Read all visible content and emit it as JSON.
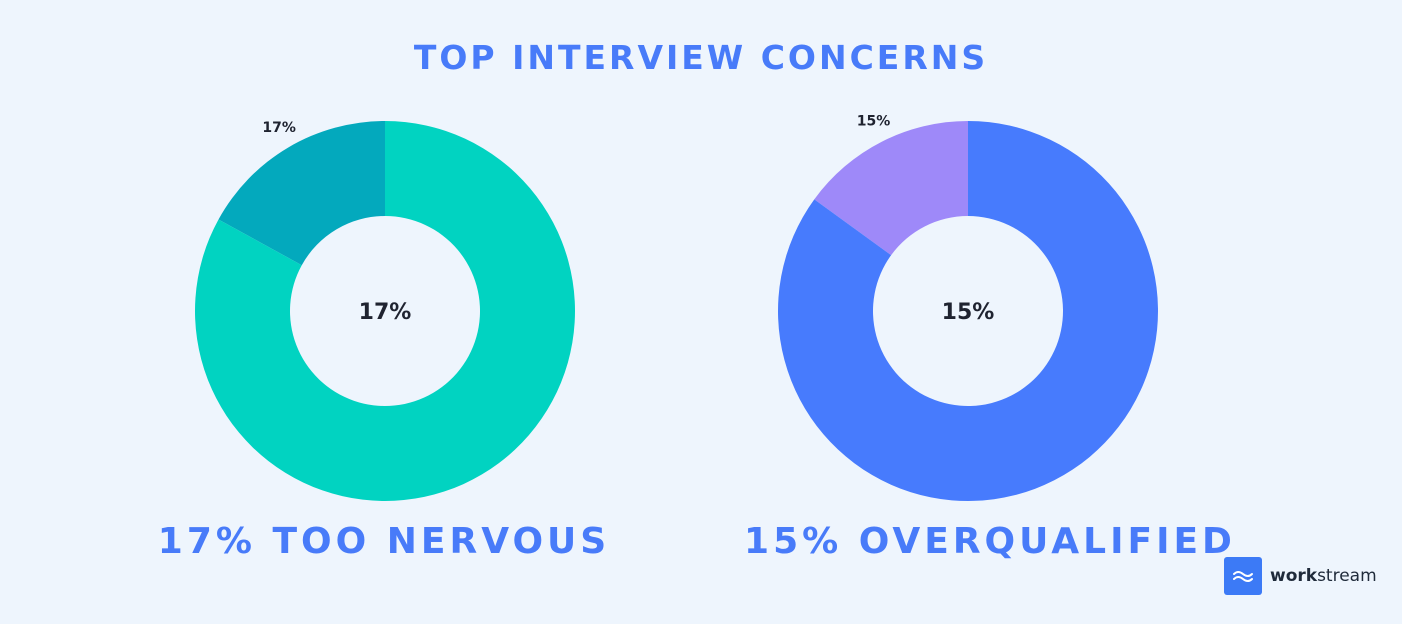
{
  "title": "TOP INTERVIEW CONCERNS",
  "chart_data": [
    {
      "type": "pie",
      "variant": "donut",
      "slices": [
        {
          "label": "17%",
          "value": 17,
          "color": "#03a9bd"
        },
        {
          "value": 83,
          "color": "#01d3c1"
        }
      ],
      "center_label": "17%",
      "caption": "17% TOO NERVOUS"
    },
    {
      "type": "pie",
      "variant": "donut",
      "slices": [
        {
          "label": "15%",
          "value": 15,
          "color": "#9e89f9"
        },
        {
          "value": 85,
          "color": "#477bfd"
        }
      ],
      "center_label": "15%",
      "caption": "15% OVERQUALIFIED"
    }
  ],
  "brand": {
    "name_bold": "work",
    "name_rest": "stream",
    "icon": "wave-icon",
    "logo_color": "#3c7af6"
  },
  "colors": {
    "background": "#eef5fd",
    "accent": "#487bf9"
  }
}
